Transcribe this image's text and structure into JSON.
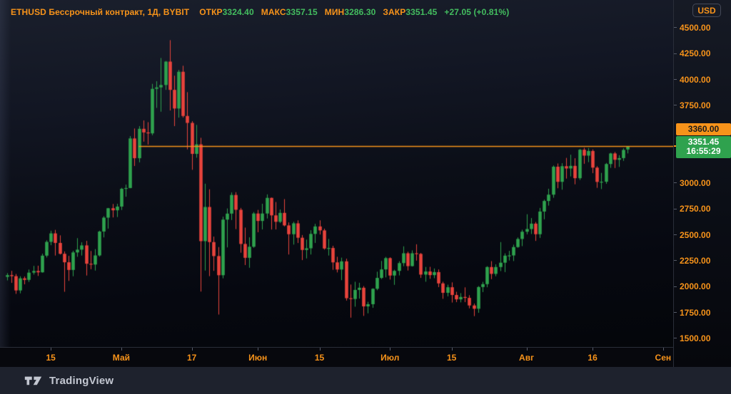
{
  "header": {
    "symbol_title": "ETHUSD Бессрочный контракт, 1Д, BYBIT",
    "fields": [
      {
        "label": "ОТКР",
        "value": "3324.40"
      },
      {
        "label": "МАКС",
        "value": "3357.15"
      },
      {
        "label": "МИН",
        "value": "3286.30"
      },
      {
        "label": "ЗАКР",
        "value": "3351.45"
      }
    ],
    "change": "+27.05 (+0.81%)"
  },
  "price_scale": {
    "currency_button": "USD",
    "ticks": [
      "4500.00",
      "4250.00",
      "4000.00",
      "3750.00",
      "3000.00",
      "2750.00",
      "2500.00",
      "2250.00",
      "2000.00",
      "1750.00",
      "1500.00"
    ]
  },
  "time_scale": {
    "ticks": [
      {
        "label": "15",
        "index": 10
      },
      {
        "label": "Май",
        "index": 26
      },
      {
        "label": "17",
        "index": 42
      },
      {
        "label": "Июн",
        "index": 57
      },
      {
        "label": "15",
        "index": 71
      },
      {
        "label": "Июл",
        "index": 87
      },
      {
        "label": "15",
        "index": 101
      },
      {
        "label": "Авг",
        "index": 118
      },
      {
        "label": "16",
        "index": 133
      },
      {
        "label": "Сен",
        "index": 149
      }
    ]
  },
  "line_tool": {
    "price": 3360.0,
    "price_label": "3360.00",
    "start_index": 30
  },
  "last_price": {
    "value": 3351.45,
    "label": "3351.45",
    "countdown": "16:55:29",
    "direction": "up"
  },
  "footer": {
    "brand": "TradingView"
  },
  "colors": {
    "accent_orange": "#F7931A",
    "value_green": "#43BD5F",
    "candle_up": "#2FA24E",
    "candle_down": "#E8443C",
    "axis_border": "#2A2E39",
    "badge_up_bg": "#2FA24E",
    "badge_line_bg": "#F7931A"
  },
  "chart_data": {
    "type": "candlestick",
    "title": "ETHUSD Бессрочный контракт, 1Д, BYBIT",
    "interval": "1Д",
    "currency": "USD",
    "ylim": [
      1417,
      4768
    ],
    "grid": false,
    "ohlc_format": [
      "open",
      "high",
      "low",
      "close"
    ],
    "ohlc": [
      [
        2094,
        2130,
        2060,
        2111
      ],
      [
        2111,
        2152,
        2036,
        2101
      ],
      [
        2101,
        2122,
        1930,
        1963
      ],
      [
        1963,
        2100,
        1935,
        2080
      ],
      [
        2080,
        2098,
        2022,
        2065
      ],
      [
        2065,
        2165,
        2045,
        2135
      ],
      [
        2135,
        2200,
        2116,
        2151
      ],
      [
        2151,
        2202,
        2103,
        2138
      ],
      [
        2138,
        2318,
        2135,
        2299
      ],
      [
        2299,
        2447,
        2281,
        2432
      ],
      [
        2432,
        2540,
        2400,
        2514
      ],
      [
        2514,
        2548,
        2300,
        2422
      ],
      [
        2422,
        2495,
        2310,
        2317
      ],
      [
        2317,
        2340,
        1950,
        2235
      ],
      [
        2235,
        2297,
        2055,
        2161
      ],
      [
        2161,
        2346,
        2100,
        2330
      ],
      [
        2330,
        2468,
        2288,
        2357
      ],
      [
        2357,
        2428,
        2300,
        2398
      ],
      [
        2398,
        2442,
        2107,
        2221
      ],
      [
        2221,
        2344,
        2168,
        2213
      ],
      [
        2213,
        2362,
        2155,
        2301
      ],
      [
        2301,
        2540,
        2290,
        2532
      ],
      [
        2532,
        2680,
        2475,
        2666
      ],
      [
        2666,
        2760,
        2560,
        2757
      ],
      [
        2757,
        2798,
        2668,
        2737
      ],
      [
        2737,
        2800,
        2672,
        2773
      ],
      [
        2773,
        2954,
        2740,
        2945
      ],
      [
        2945,
        2985,
        2868,
        2952
      ],
      [
        2952,
        3454,
        2950,
        3431
      ],
      [
        3431,
        3527,
        3165,
        3240
      ],
      [
        3240,
        3550,
        3200,
        3524
      ],
      [
        3524,
        3605,
        3400,
        3489
      ],
      [
        3489,
        3588,
        3372,
        3480
      ],
      [
        3480,
        3958,
        3462,
        3910
      ],
      [
        3910,
        3984,
        3726,
        3924
      ],
      [
        3924,
        4208,
        3689,
        3947
      ],
      [
        3947,
        4179,
        3900,
        4173
      ],
      [
        4173,
        4380,
        3701,
        3900
      ],
      [
        3900,
        4037,
        3550,
        3720
      ],
      [
        3720,
        4093,
        3632,
        4075
      ],
      [
        4075,
        4133,
        3633,
        3648
      ],
      [
        3648,
        3878,
        3325,
        3581
      ],
      [
        3581,
        3598,
        3128,
        3282
      ],
      [
        3282,
        3562,
        3245,
        3374
      ],
      [
        3374,
        3437,
        1952,
        2439
      ],
      [
        2439,
        2994,
        2155,
        2769
      ],
      [
        2769,
        2940,
        2101,
        2430
      ],
      [
        2430,
        2483,
        2152,
        2295
      ],
      [
        2295,
        2382,
        1730,
        2110
      ],
      [
        2110,
        2675,
        2080,
        2647
      ],
      [
        2647,
        2755,
        2379,
        2705
      ],
      [
        2705,
        2910,
        2643,
        2885
      ],
      [
        2885,
        2912,
        2555,
        2742
      ],
      [
        2742,
        2760,
        2327,
        2412
      ],
      [
        2412,
        2570,
        2208,
        2278
      ],
      [
        2278,
        2476,
        2182,
        2385
      ],
      [
        2385,
        2720,
        2375,
        2706
      ],
      [
        2706,
        2741,
        2525,
        2634
      ],
      [
        2634,
        2800,
        2552,
        2706
      ],
      [
        2706,
        2891,
        2658,
        2857
      ],
      [
        2857,
        2860,
        2551,
        2688
      ],
      [
        2688,
        2817,
        2552,
        2626
      ],
      [
        2626,
        2745,
        2614,
        2712
      ],
      [
        2712,
        2845,
        2582,
        2591
      ],
      [
        2591,
        2620,
        2310,
        2506
      ],
      [
        2506,
        2626,
        2406,
        2611
      ],
      [
        2611,
        2640,
        2421,
        2472
      ],
      [
        2472,
        2498,
        2256,
        2354
      ],
      [
        2354,
        2454,
        2272,
        2370
      ],
      [
        2370,
        2545,
        2310,
        2509
      ],
      [
        2509,
        2606,
        2422,
        2581
      ],
      [
        2581,
        2640,
        2503,
        2543
      ],
      [
        2543,
        2560,
        2357,
        2368
      ],
      [
        2368,
        2460,
        2300,
        2373
      ],
      [
        2373,
        2394,
        2162,
        2234
      ],
      [
        2234,
        2288,
        2137,
        2165
      ],
      [
        2165,
        2280,
        2062,
        2244
      ],
      [
        2244,
        2270,
        1865,
        1888
      ],
      [
        1888,
        2020,
        1700,
        1880
      ],
      [
        1880,
        2047,
        1806,
        1968
      ],
      [
        1968,
        2037,
        1884,
        1989
      ],
      [
        1989,
        2005,
        1717,
        1809
      ],
      [
        1809,
        1853,
        1742,
        1830
      ],
      [
        1830,
        1984,
        1795,
        1979
      ],
      [
        1979,
        2144,
        1965,
        2084
      ],
      [
        2084,
        2248,
        2073,
        2166
      ],
      [
        2166,
        2287,
        2089,
        2275
      ],
      [
        2275,
        2283,
        2068,
        2107
      ],
      [
        2107,
        2163,
        2017,
        2152
      ],
      [
        2152,
        2245,
        2108,
        2227
      ],
      [
        2227,
        2389,
        2197,
        2322
      ],
      [
        2322,
        2337,
        2155,
        2198
      ],
      [
        2198,
        2350,
        2194,
        2322
      ],
      [
        2322,
        2409,
        2251,
        2316
      ],
      [
        2316,
        2325,
        2084,
        2116
      ],
      [
        2116,
        2190,
        2047,
        2146
      ],
      [
        2146,
        2191,
        2075,
        2111
      ],
      [
        2111,
        2175,
        2081,
        2140
      ],
      [
        2140,
        2166,
        1995,
        2031
      ],
      [
        2031,
        2047,
        1882,
        1940
      ],
      [
        1940,
        2019,
        1906,
        1994
      ],
      [
        1994,
        2041,
        1846,
        1919
      ],
      [
        1919,
        1950,
        1850,
        1877
      ],
      [
        1877,
        1937,
        1848,
        1900
      ],
      [
        1900,
        1993,
        1850,
        1891
      ],
      [
        1891,
        1917,
        1790,
        1818
      ],
      [
        1818,
        1836,
        1715,
        1786
      ],
      [
        1786,
        2005,
        1747,
        1996
      ],
      [
        1996,
        2046,
        1947,
        2024
      ],
      [
        2024,
        2197,
        1994,
        2189
      ],
      [
        2189,
        2246,
        2072,
        2123
      ],
      [
        2123,
        2215,
        2100,
        2189
      ],
      [
        2189,
        2430,
        2150,
        2231
      ],
      [
        2231,
        2321,
        2140,
        2299
      ],
      [
        2299,
        2345,
        2252,
        2301
      ],
      [
        2301,
        2405,
        2247,
        2382
      ],
      [
        2382,
        2475,
        2375,
        2460
      ],
      [
        2460,
        2549,
        2391,
        2530
      ],
      [
        2530,
        2699,
        2505,
        2556
      ],
      [
        2556,
        2662,
        2508,
        2608
      ],
      [
        2608,
        2624,
        2441,
        2506
      ],
      [
        2506,
        2760,
        2470,
        2725
      ],
      [
        2725,
        2840,
        2650,
        2827
      ],
      [
        2827,
        2945,
        2782,
        2888
      ],
      [
        2888,
        3170,
        2858,
        3158
      ],
      [
        3158,
        3189,
        2950,
        3012
      ],
      [
        3012,
        3192,
        2936,
        3163
      ],
      [
        3163,
        3243,
        3043,
        3141
      ],
      [
        3141,
        3274,
        3064,
        3166
      ],
      [
        3166,
        3240,
        2988,
        3047
      ],
      [
        3047,
        3330,
        3030,
        3322
      ],
      [
        3322,
        3340,
        3186,
        3265
      ],
      [
        3265,
        3338,
        3202,
        3310
      ],
      [
        3310,
        3325,
        3096,
        3149
      ],
      [
        3149,
        3163,
        2954,
        3011
      ],
      [
        3011,
        3098,
        2942,
        3013
      ],
      [
        3013,
        3194,
        2993,
        3184
      ],
      [
        3184,
        3292,
        3147,
        3286
      ],
      [
        3286,
        3300,
        3145,
        3225
      ],
      [
        3225,
        3269,
        3156,
        3241
      ],
      [
        3241,
        3336,
        3214,
        3320
      ],
      [
        3324.4,
        3357.15,
        3286.3,
        3351.45
      ]
    ],
    "horizontal_line": {
      "price": 3360.0,
      "from_index": 30
    },
    "last_close": 3351.45
  }
}
